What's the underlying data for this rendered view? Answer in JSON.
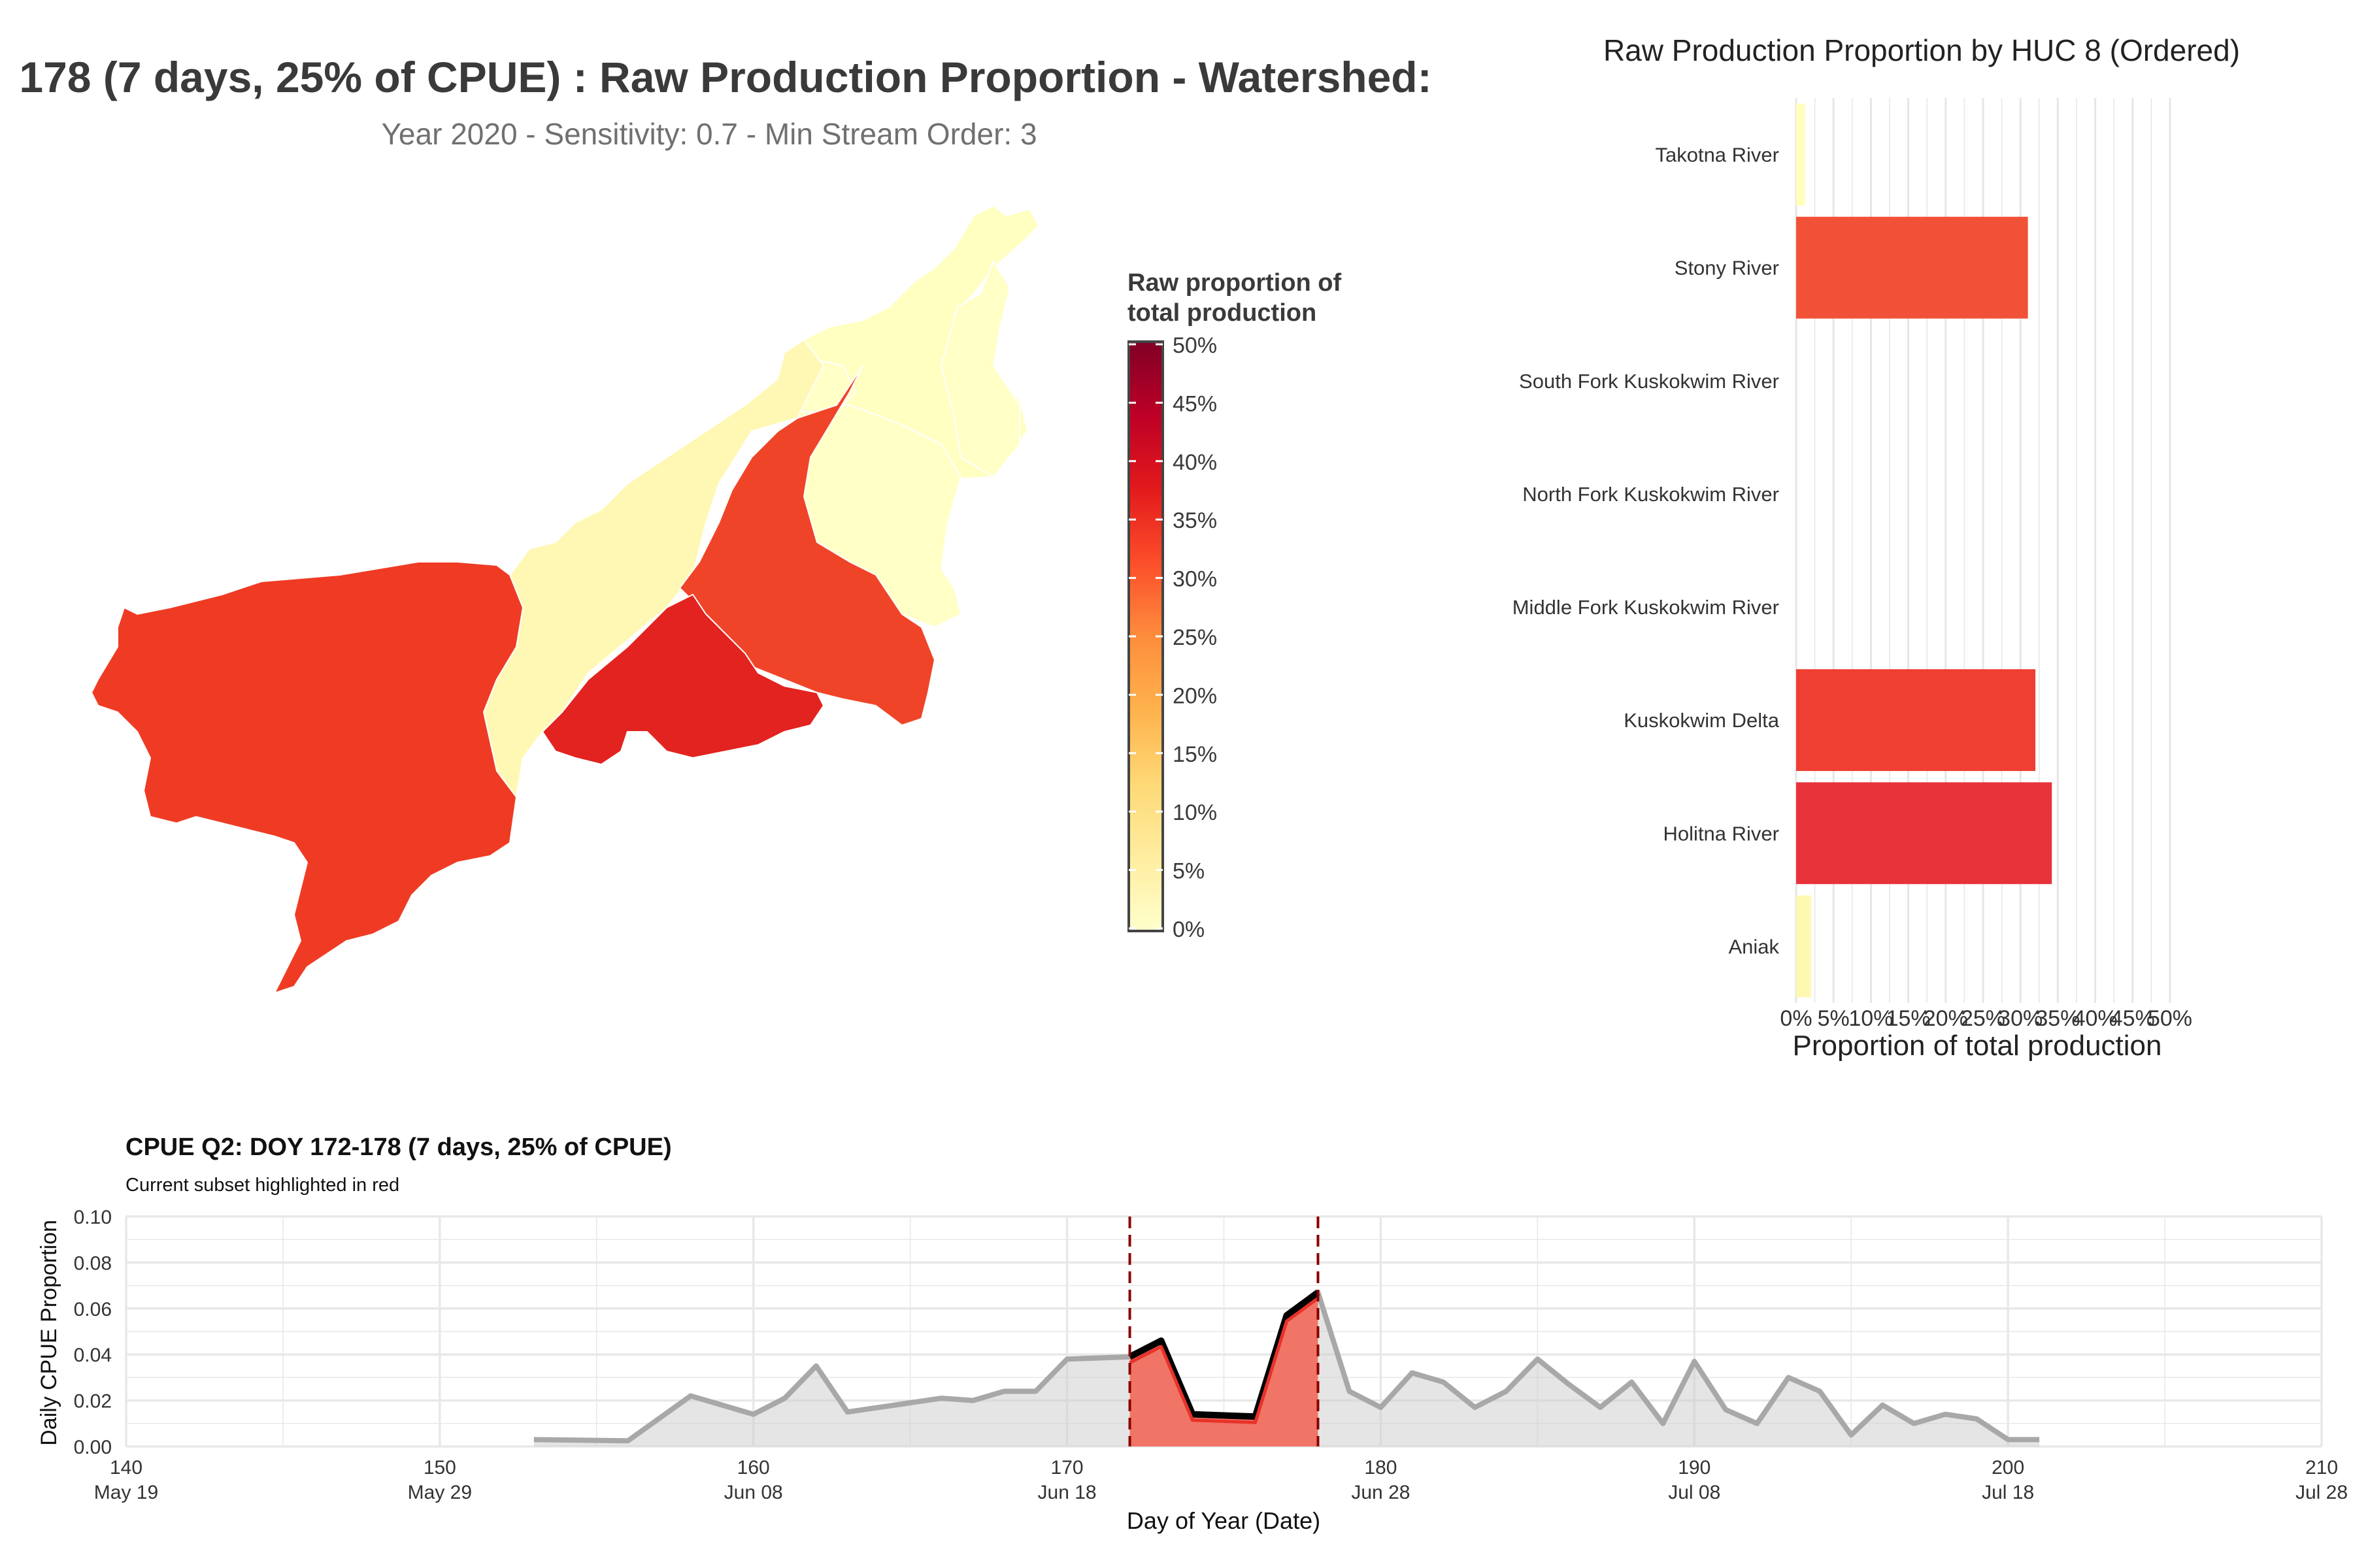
{
  "header": {
    "title": "178 (7 days, 25% of CPUE) : Raw Production Proportion - Watershed:",
    "subtitle": "Year 2020 - Sensitivity: 0.7 - Min Stream Order: 3"
  },
  "map_legend": {
    "title_line1": "Raw proportion of",
    "title_line2": "total production",
    "ticks": [
      "0%",
      "5%",
      "10%",
      "15%",
      "20%",
      "25%",
      "30%",
      "35%",
      "40%",
      "45%",
      "50%"
    ],
    "range": [
      0,
      50
    ],
    "colors": [
      "#ffffcc",
      "#ffeda0",
      "#fed976",
      "#feb24c",
      "#fd8d3c",
      "#fc4e2a",
      "#e31a1c",
      "#bd0026",
      "#800026"
    ]
  },
  "map": {
    "regions": [
      {
        "name": "Kuskokwim Delta",
        "value": 32,
        "color": "#ef3b24"
      },
      {
        "name": "Holitna River",
        "value": 34,
        "color": "#e2231f"
      },
      {
        "name": "Stony River",
        "value": 31,
        "color": "#f04428"
      },
      {
        "name": "Aniak",
        "value": 2,
        "color": "#fff8b4"
      },
      {
        "name": "Takotna River",
        "value": 1,
        "color": "#ffffc2"
      },
      {
        "name": "Middle Fork Kuskokwim River",
        "value": 0,
        "color": "#ffffc6"
      },
      {
        "name": "North Fork Kuskokwim River",
        "value": 0,
        "color": "#ffffc6"
      },
      {
        "name": "South Fork Kuskokwim River",
        "value": 0,
        "color": "#ffffc6"
      }
    ]
  },
  "chart_data": [
    {
      "type": "bar",
      "orientation": "horizontal",
      "title": "Raw Production Proportion by HUC 8 (Ordered)",
      "xlabel": "Proportion of total production",
      "ylabel": "",
      "xlim": [
        0,
        50
      ],
      "xticks": [
        "0%",
        "5%",
        "10%",
        "15%",
        "20%",
        "25%",
        "30%",
        "35%",
        "40%",
        "45%",
        "50%"
      ],
      "categories": [
        "Takotna River",
        "Stony River",
        "South Fork Kuskokwim River",
        "North Fork Kuskokwim River",
        "Middle Fork Kuskokwim River",
        "Kuskokwim Delta",
        "Holitna River",
        "Aniak"
      ],
      "values": [
        1.2,
        31,
        0,
        0,
        0,
        32,
        34.2,
        2
      ],
      "colors": [
        "#ffffbb",
        "#f15237",
        "#ffffff",
        "#ffffff",
        "#ffffff",
        "#ef3e32",
        "#e8323a",
        "#fff8b0"
      ],
      "grid": true
    },
    {
      "type": "area",
      "title": "CPUE Q2: DOY 172-178 (7 days, 25% of CPUE)",
      "subtitle": "Current subset highlighted in red",
      "xlabel": "Day of Year (Date)",
      "ylabel": "Daily CPUE Proportion",
      "xlim": [
        140,
        210
      ],
      "ylim": [
        0,
        0.1
      ],
      "xticks": [
        {
          "doy": 140,
          "date": "May 19"
        },
        {
          "doy": 150,
          "date": "May 29"
        },
        {
          "doy": 160,
          "date": "Jun 08"
        },
        {
          "doy": 170,
          "date": "Jun 18"
        },
        {
          "doy": 180,
          "date": "Jun 28"
        },
        {
          "doy": 190,
          "date": "Jul 08"
        },
        {
          "doy": 200,
          "date": "Jul 18"
        },
        {
          "doy": 210,
          "date": "Jul 28"
        }
      ],
      "yticks": [
        "0.00",
        "0.02",
        "0.04",
        "0.06",
        "0.08",
        "0.10"
      ],
      "highlight_range": [
        172,
        178
      ],
      "series": [
        {
          "x": [
            153,
            156,
            158,
            159,
            160,
            161,
            162,
            163,
            165,
            166,
            167,
            168,
            169,
            170,
            172,
            173,
            174,
            175,
            176,
            177,
            178,
            179,
            180,
            181,
            182,
            183,
            184,
            185,
            186,
            187,
            188,
            189,
            190,
            191,
            192,
            193,
            194,
            195,
            196,
            197,
            198,
            199,
            200,
            201
          ],
          "y": [
            0.003,
            0.0025,
            0.022,
            0.018,
            0.014,
            0.021,
            0.035,
            0.015,
            0.019,
            0.021,
            0.02,
            0.024,
            0.024,
            0.038,
            0.039,
            0.046,
            0.014,
            0.0135,
            0.013,
            0.057,
            0.067,
            0.024,
            0.017,
            0.032,
            0.028,
            0.017,
            0.024,
            0.038,
            0.027,
            0.017,
            0.028,
            0.01,
            0.037,
            0.016,
            0.01,
            0.03,
            0.024,
            0.005,
            0.018,
            0.01,
            0.014,
            0.012,
            0.003,
            0.003
          ]
        }
      ],
      "grid": true
    }
  ]
}
